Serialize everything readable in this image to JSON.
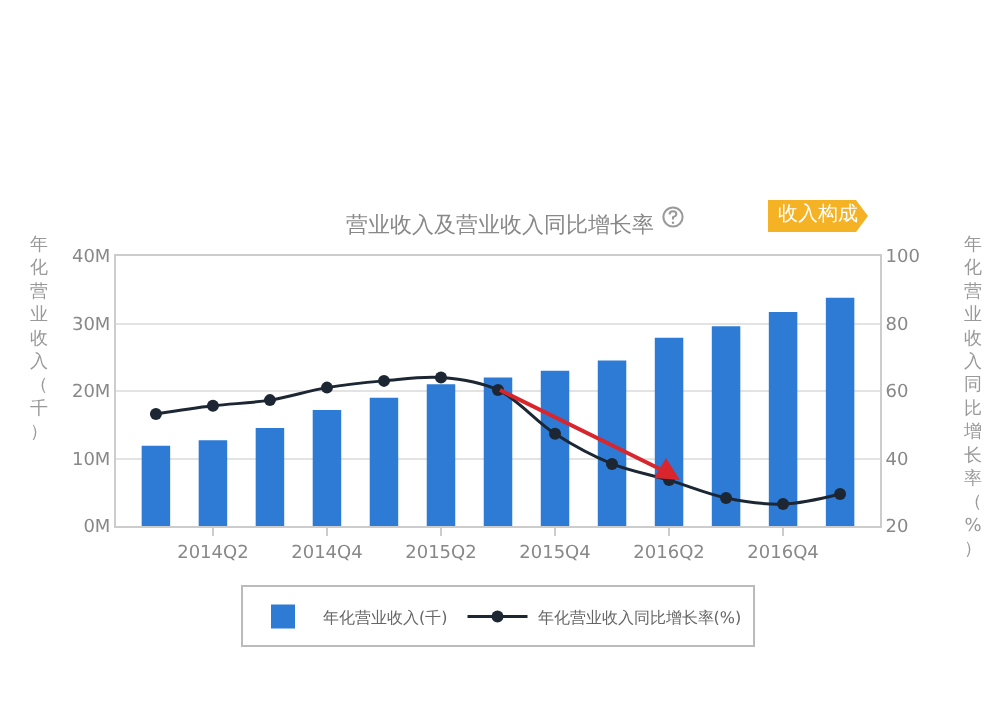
{
  "chart_data": {
    "type": "bar",
    "title": "营业收入及营业收入同比增长率",
    "ylabel": "年化营业收入（千）",
    "y2label": "年化营业收入同比增长率（%）",
    "annotations": [
      "收入构成"
    ],
    "categories": [
      null,
      "2014Q2",
      null,
      "2014Q4",
      null,
      "2015Q2",
      null,
      "2015Q4",
      null,
      "2016Q2",
      null,
      "2016Q4",
      null
    ],
    "series": [
      {
        "name": "年化营业收入(千)",
        "color": "#2e7bd6",
        "values": [
          11.9,
          12.7,
          14.5,
          17.2,
          19.0,
          21.0,
          22.0,
          23.0,
          24.5,
          27.9,
          29.6,
          31.7,
          33.8
        ]
      },
      {
        "name": "年化营业收入同比增长率(%)",
        "type": "line",
        "axis": "y2",
        "color": "#1c2733",
        "marker": "circle",
        "values": [
          53.2,
          55.6,
          57.3,
          61.0,
          63.0,
          64.0,
          60.3,
          47.3,
          38.4,
          33.6,
          28.3,
          26.5,
          29.5
        ]
      }
    ],
    "ylim": [
      0,
      40
    ],
    "yticks": [
      {
        "value": 0,
        "label": "0M"
      },
      {
        "value": 10,
        "label": "10M"
      },
      {
        "value": 20,
        "label": "20M"
      },
      {
        "value": 30,
        "label": "30M"
      },
      {
        "value": 40,
        "label": "40M"
      }
    ],
    "y2lim": [
      20,
      100
    ],
    "y2ticks": [
      20,
      40,
      60,
      80,
      100
    ],
    "grid": "y",
    "legend": "bottom"
  }
}
